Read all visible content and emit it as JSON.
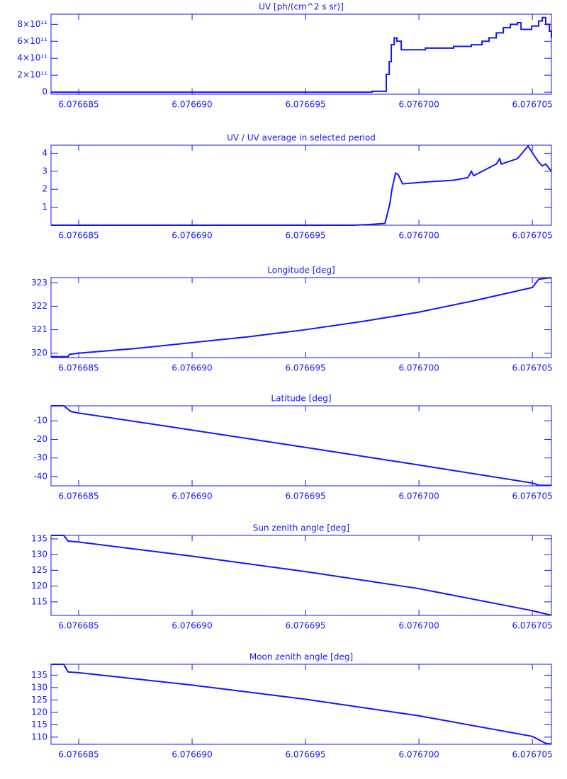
{
  "chart_data": [
    {
      "type": "line",
      "title": "UV [ph/(cm^2 s sr)]",
      "step": true,
      "color": "#1414ff",
      "x": [
        6.07668378,
        6.07669794,
        6.07669856,
        6.07669869,
        6.07669878,
        6.07669891,
        6.07669903,
        6.07669922,
        6.07670028,
        6.07670153,
        6.07670231,
        6.07670278,
        6.07670309,
        6.07670341,
        6.07670372,
        6.07670403,
        6.07670434,
        6.0767045,
        6.07670497,
        6.07670528,
        6.07670544,
        6.07670559,
        6.07670575,
        6.07670584
      ],
      "values": [
        0,
        10000000000,
        210000000000,
        360000000000,
        560000000000,
        640000000000,
        600000000000,
        500000000000,
        520000000000,
        540000000000,
        560000000000,
        600000000000,
        640000000000,
        700000000000,
        760000000000,
        800000000000,
        820000000000,
        740000000000,
        780000000000,
        840000000000,
        880000000000,
        800000000000,
        720000000000,
        640000000000
      ],
      "xlim": [
        6.07668378,
        6.07670584
      ],
      "xticks": [
        6.076685,
        {
          "value": 6.07669,
          "label": "6.076690"
        },
        6.076695,
        {
          "value": 6.0767,
          "label": "6.076700"
        },
        6.076705
      ],
      "ylim": [
        -24000000000,
        920000000000
      ],
      "yticks": [
        0,
        {
          "value": 200000000000,
          "label": "2×10¹¹"
        },
        {
          "value": 400000000000,
          "label": "4×10¹¹"
        },
        {
          "value": 600000000000,
          "label": "6×10¹¹"
        },
        {
          "value": 800000000000,
          "label": "8×10¹¹"
        }
      ]
    },
    {
      "type": "line",
      "title": "UV / UV average in selected period",
      "color": "#1414ff",
      "x": [
        6.07668378,
        6.07669716,
        6.07669794,
        6.0766985,
        6.07669872,
        6.07669881,
        6.07669897,
        6.07669909,
        6.07669928,
        6.07670028,
        6.07670153,
        6.07670216,
        6.07670231,
        6.07670241,
        6.07670341,
        6.07670356,
        6.07670363,
        6.07670434,
        6.07670481,
        6.07670528,
        6.07670544,
        6.07670559,
        6.07670584
      ],
      "values": [
        0,
        0,
        0.05,
        0.1,
        1.2,
        2.0,
        2.9,
        2.8,
        2.3,
        2.4,
        2.5,
        2.65,
        3.0,
        2.75,
        3.4,
        3.7,
        3.4,
        3.7,
        4.4,
        3.5,
        3.3,
        3.4,
        3.0
      ],
      "xlim": [
        6.07668378,
        6.07670584
      ],
      "xticks": [
        6.076685,
        {
          "value": 6.07669,
          "label": "6.076690"
        },
        6.076695,
        {
          "value": 6.0767,
          "label": "6.076700"
        },
        6.076705
      ],
      "ylim": [
        0,
        4.45
      ],
      "yticks": [
        1,
        2,
        3,
        4
      ]
    },
    {
      "type": "line",
      "title": "Longitude [deg]",
      "color": "#1414ff",
      "x": [
        6.07668378,
        6.07668453,
        6.07668459,
        6.076685,
        6.0766875,
        6.07669,
        6.0766925,
        6.076695,
        6.0766975,
        6.0767,
        6.0767025,
        6.076705,
        6.07670528,
        6.07670584
      ],
      "values": [
        319.85,
        319.85,
        319.95,
        320.0,
        320.2,
        320.45,
        320.7,
        321.0,
        321.35,
        321.75,
        322.25,
        322.8,
        323.15,
        323.22
      ],
      "xlim": [
        6.07668378,
        6.07670584
      ],
      "xticks": [
        6.076685,
        {
          "value": 6.07669,
          "label": "6.076690"
        },
        6.076695,
        {
          "value": 6.0767,
          "label": "6.076700"
        },
        6.076705
      ],
      "ylim": [
        319.81,
        323.22
      ],
      "yticks": [
        320,
        321,
        322,
        323
      ]
    },
    {
      "type": "line",
      "title": "Latitude [deg]",
      "color": "#1414ff",
      "x": [
        6.07668378,
        6.07668434,
        6.07668466,
        6.076685,
        6.07669,
        6.076695,
        6.0767,
        6.076705,
        6.07670528,
        6.07670584
      ],
      "values": [
        -1.9,
        -1.9,
        -5.0,
        -5.8,
        -15.0,
        -24.3,
        -33.8,
        -43.5,
        -44.7,
        -44.8
      ],
      "xlim": [
        6.07668378,
        6.07670584
      ],
      "xticks": [
        6.076685,
        {
          "value": 6.07669,
          "label": "6.076690"
        },
        6.076695,
        {
          "value": 6.0767,
          "label": "6.076700"
        },
        6.076705
      ],
      "ylim": [
        -45,
        -1.9
      ],
      "yticks": [
        -40,
        -30,
        -20,
        -10
      ]
    },
    {
      "type": "line",
      "title": "Sun zenith angle [deg]",
      "color": "#1414ff",
      "x": [
        6.07668378,
        6.07668434,
        6.07668453,
        6.076685,
        6.07669,
        6.076695,
        6.0767,
        6.076705,
        6.07670575,
        6.07670584
      ],
      "values": [
        136.1,
        136.1,
        134.3,
        134.0,
        129.5,
        124.6,
        119.2,
        112.2,
        110.9,
        110.8
      ],
      "xlim": [
        6.07668378,
        6.07670584
      ],
      "xticks": [
        6.076685,
        {
          "value": 6.07669,
          "label": "6.076690"
        },
        6.076695,
        {
          "value": 6.0767,
          "label": "6.076700"
        },
        6.076705
      ],
      "ylim": [
        110.7,
        136.1
      ],
      "yticks": [
        115,
        120,
        125,
        130,
        135
      ]
    },
    {
      "type": "line",
      "title": "Moon zenith angle [deg]",
      "color": "#1414ff",
      "x": [
        6.07668378,
        6.07668434,
        6.07668453,
        6.076685,
        6.07669,
        6.076695,
        6.0767,
        6.076705,
        6.07670559,
        6.07670584
      ],
      "values": [
        139.4,
        139.4,
        136.3,
        136.0,
        131.0,
        125.3,
        118.6,
        110.3,
        107.5,
        107.2
      ],
      "xlim": [
        6.07668378,
        6.07670584
      ],
      "xticks": [
        6.076685,
        {
          "value": 6.07669,
          "label": "6.076690"
        },
        6.076695,
        {
          "value": 6.0767,
          "label": "6.076700"
        },
        6.076705
      ],
      "ylim": [
        107.1,
        139.4
      ],
      "yticks": [
        110,
        115,
        120,
        125,
        130,
        135
      ]
    }
  ]
}
